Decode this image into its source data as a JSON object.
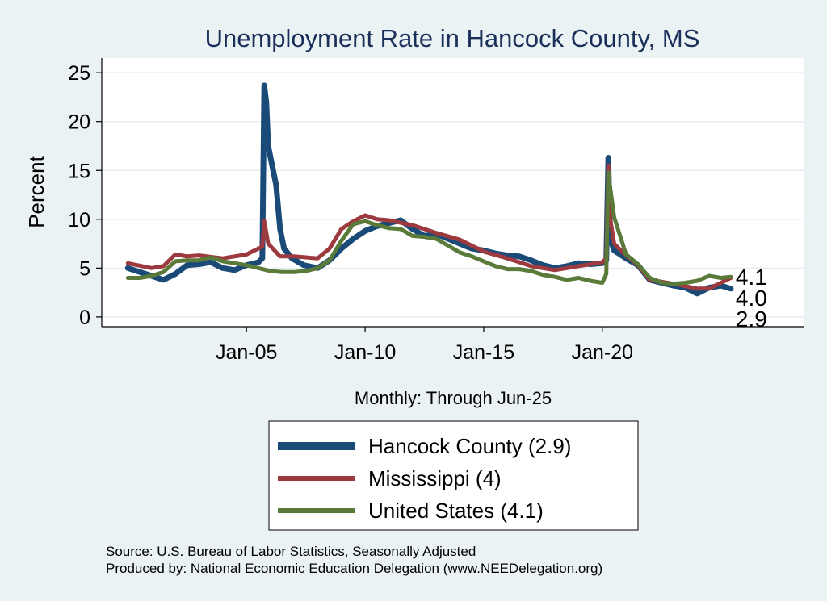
{
  "chart_data": {
    "type": "line",
    "title": "Unemployment Rate in Hancock  County, MS",
    "xlabel": "Monthly: Through Jun-25",
    "ylabel": "Percent",
    "x_range": [
      "Jan-00",
      "Jun-25"
    ],
    "ylim": [
      -1,
      26.5
    ],
    "x_ticks": [
      "Jan-05",
      "Jan-10",
      "Jan-15",
      "Jan-20"
    ],
    "y_ticks": [
      0,
      5,
      10,
      15,
      20,
      25
    ],
    "grid": true,
    "legend_placement": "bottom",
    "series": [
      {
        "name": "Hancock  County (2.9)",
        "color": "#1a4a78",
        "end_label": "2.9",
        "points": [
          [
            "Jan-00",
            5.0
          ],
          [
            "Jul-00",
            4.6
          ],
          [
            "Jan-01",
            4.2
          ],
          [
            "Jul-01",
            3.8
          ],
          [
            "Jan-02",
            4.4
          ],
          [
            "Jul-02",
            5.3
          ],
          [
            "Jan-03",
            5.4
          ],
          [
            "Jul-03",
            5.6
          ],
          [
            "Jan-04",
            5.0
          ],
          [
            "Jul-04",
            4.8
          ],
          [
            "Jan-05",
            5.3
          ],
          [
            "Jul-05",
            5.6
          ],
          [
            "Sep-05",
            6.0
          ],
          [
            "Oct-05",
            23.7
          ],
          [
            "Nov-05",
            22.0
          ],
          [
            "Dec-05",
            17.5
          ],
          [
            "Feb-06",
            15.5
          ],
          [
            "Apr-06",
            13.5
          ],
          [
            "Jun-06",
            9.0
          ],
          [
            "Aug-06",
            7.0
          ],
          [
            "Dec-06",
            6.0
          ],
          [
            "Jun-07",
            5.3
          ],
          [
            "Jan-08",
            5.0
          ],
          [
            "Jul-08",
            5.8
          ],
          [
            "Jan-09",
            7.0
          ],
          [
            "Jul-09",
            8.0
          ],
          [
            "Jan-10",
            8.8
          ],
          [
            "Jul-10",
            9.3
          ],
          [
            "Jan-11",
            9.6
          ],
          [
            "Jul-11",
            9.9
          ],
          [
            "Jan-12",
            9.0
          ],
          [
            "Jul-12",
            8.3
          ],
          [
            "Jan-13",
            8.5
          ],
          [
            "Jul-13",
            8.0
          ],
          [
            "Jan-14",
            7.5
          ],
          [
            "Jul-14",
            7.0
          ],
          [
            "Jan-15",
            6.8
          ],
          [
            "Jul-15",
            6.5
          ],
          [
            "Jan-16",
            6.3
          ],
          [
            "Jul-16",
            6.2
          ],
          [
            "Jan-17",
            5.8
          ],
          [
            "Jul-17",
            5.3
          ],
          [
            "Jan-18",
            5.0
          ],
          [
            "Jul-18",
            5.2
          ],
          [
            "Jan-19",
            5.5
          ],
          [
            "Jul-19",
            5.4
          ],
          [
            "Jan-20",
            5.5
          ],
          [
            "Mar-20",
            5.8
          ],
          [
            "Apr-20",
            16.3
          ],
          [
            "May-20",
            8.0
          ],
          [
            "Jul-20",
            6.8
          ],
          [
            "Jan-21",
            6.0
          ],
          [
            "Jul-21",
            5.3
          ],
          [
            "Jan-22",
            3.8
          ],
          [
            "Jul-22",
            3.5
          ],
          [
            "Jan-23",
            3.2
          ],
          [
            "Jul-23",
            3.0
          ],
          [
            "Jan-24",
            2.4
          ],
          [
            "Jul-24",
            3.0
          ],
          [
            "Jan-25",
            3.2
          ],
          [
            "Jun-25",
            2.9
          ]
        ]
      },
      {
        "name": "Mississippi (4)",
        "color": "#9c3a3f",
        "end_label": "4.0",
        "points": [
          [
            "Jan-00",
            5.5
          ],
          [
            "Jan-01",
            5.0
          ],
          [
            "Jul-01",
            5.2
          ],
          [
            "Jan-02",
            6.4
          ],
          [
            "Jul-02",
            6.2
          ],
          [
            "Jan-03",
            6.3
          ],
          [
            "Jan-04",
            6.0
          ],
          [
            "Jan-05",
            6.4
          ],
          [
            "Jul-05",
            7.0
          ],
          [
            "Sep-05",
            7.2
          ],
          [
            "Oct-05",
            9.8
          ],
          [
            "Dec-05",
            7.5
          ],
          [
            "Jun-06",
            6.2
          ],
          [
            "Jan-07",
            6.2
          ],
          [
            "Jan-08",
            6.0
          ],
          [
            "Jul-08",
            7.0
          ],
          [
            "Jan-09",
            9.0
          ],
          [
            "Jul-09",
            9.8
          ],
          [
            "Jan-10",
            10.4
          ],
          [
            "Jul-10",
            10.0
          ],
          [
            "Jan-11",
            9.9
          ],
          [
            "Jan-12",
            9.4
          ],
          [
            "Jan-13",
            8.6
          ],
          [
            "Jan-14",
            7.9
          ],
          [
            "Jan-15",
            6.7
          ],
          [
            "Jan-16",
            6.0
          ],
          [
            "Jan-17",
            5.2
          ],
          [
            "Jan-18",
            4.8
          ],
          [
            "Jan-19",
            5.2
          ],
          [
            "Jan-20",
            5.6
          ],
          [
            "Mar-20",
            6.0
          ],
          [
            "Apr-20",
            15.5
          ],
          [
            "May-20",
            10.0
          ],
          [
            "Jul-20",
            7.5
          ],
          [
            "Jan-21",
            6.3
          ],
          [
            "Jul-21",
            5.3
          ],
          [
            "Jan-22",
            3.8
          ],
          [
            "Jan-23",
            3.4
          ],
          [
            "Jan-24",
            2.9
          ],
          [
            "Jul-24",
            2.9
          ],
          [
            "Jan-25",
            3.5
          ],
          [
            "Jun-25",
            4.0
          ]
        ]
      },
      {
        "name": "United States (4.1)",
        "color": "#5a7a3a",
        "end_label": "4.1",
        "points": [
          [
            "Jan-00",
            4.0
          ],
          [
            "Jul-00",
            4.0
          ],
          [
            "Jan-01",
            4.2
          ],
          [
            "Jul-01",
            4.6
          ],
          [
            "Jan-02",
            5.7
          ],
          [
            "Jul-02",
            5.8
          ],
          [
            "Jan-03",
            5.8
          ],
          [
            "Jul-03",
            6.1
          ],
          [
            "Jan-04",
            5.7
          ],
          [
            "Jul-04",
            5.5
          ],
          [
            "Jan-05",
            5.3
          ],
          [
            "Jul-05",
            5.0
          ],
          [
            "Jan-06",
            4.7
          ],
          [
            "Jul-06",
            4.6
          ],
          [
            "Jan-07",
            4.6
          ],
          [
            "Jul-07",
            4.7
          ],
          [
            "Jan-08",
            5.0
          ],
          [
            "Jul-08",
            5.8
          ],
          [
            "Jan-09",
            7.8
          ],
          [
            "Jul-09",
            9.5
          ],
          [
            "Jan-10",
            9.8
          ],
          [
            "Jul-10",
            9.4
          ],
          [
            "Jan-11",
            9.1
          ],
          [
            "Jul-11",
            9.0
          ],
          [
            "Jan-12",
            8.3
          ],
          [
            "Jul-12",
            8.2
          ],
          [
            "Jan-13",
            8.0
          ],
          [
            "Jul-13",
            7.3
          ],
          [
            "Jan-14",
            6.6
          ],
          [
            "Jul-14",
            6.2
          ],
          [
            "Jan-15",
            5.7
          ],
          [
            "Jul-15",
            5.2
          ],
          [
            "Jan-16",
            4.9
          ],
          [
            "Jul-16",
            4.9
          ],
          [
            "Jan-17",
            4.7
          ],
          [
            "Jul-17",
            4.3
          ],
          [
            "Jan-18",
            4.1
          ],
          [
            "Jul-18",
            3.8
          ],
          [
            "Jan-19",
            4.0
          ],
          [
            "Jul-19",
            3.7
          ],
          [
            "Jan-20",
            3.5
          ],
          [
            "Mar-20",
            4.4
          ],
          [
            "Apr-20",
            14.8
          ],
          [
            "May-20",
            13.2
          ],
          [
            "Jul-20",
            10.2
          ],
          [
            "Jan-21",
            6.4
          ],
          [
            "Jul-21",
            5.4
          ],
          [
            "Jan-22",
            4.0
          ],
          [
            "Jul-22",
            3.5
          ],
          [
            "Jan-23",
            3.4
          ],
          [
            "Jul-23",
            3.5
          ],
          [
            "Jan-24",
            3.7
          ],
          [
            "Jul-24",
            4.2
          ],
          [
            "Jan-25",
            4.0
          ],
          [
            "Jun-25",
            4.1
          ]
        ]
      }
    ],
    "legend": [
      {
        "label": "Hancock  County (2.9)",
        "color": "#1a4a78"
      },
      {
        "label": "Mississippi (4)",
        "color": "#9c3a3f"
      },
      {
        "label": "United States (4.1)",
        "color": "#5a7a3a"
      }
    ]
  },
  "source_line": "Source: U.S. Bureau of Labor Statistics, Seasonally Adjusted",
  "produced_line": "Produced by: National Economic Education Delegation (www.NEEDelegation.org)"
}
